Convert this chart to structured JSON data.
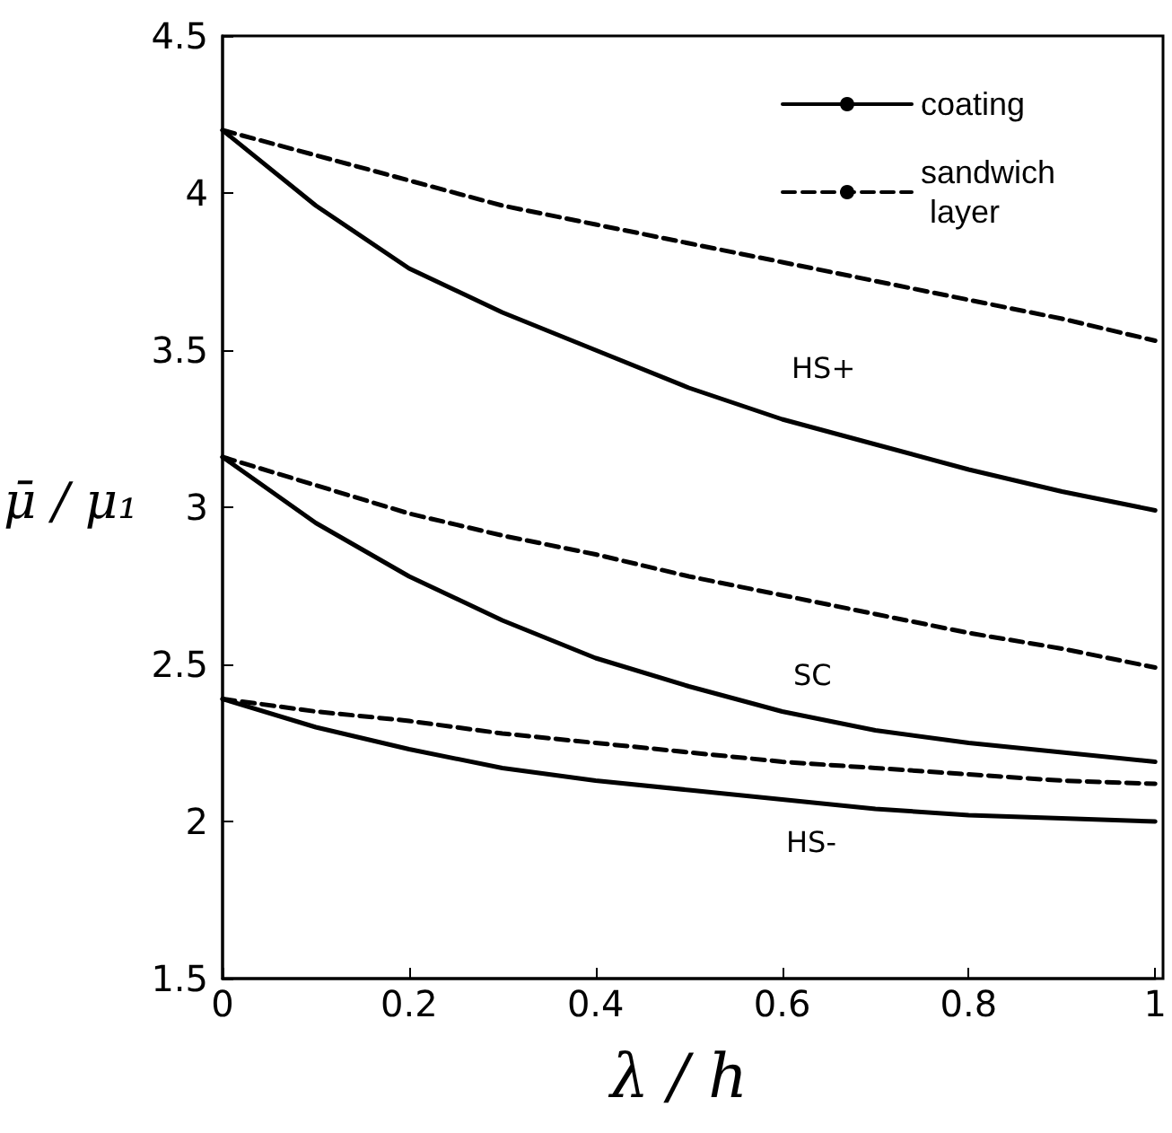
{
  "chart_data": {
    "type": "line",
    "xlabel": "λ / h",
    "ylabel": "μ̄ / μ₁",
    "x": [
      0,
      0.1,
      0.2,
      0.3,
      0.4,
      0.5,
      0.6,
      0.7,
      0.8,
      0.9,
      1
    ],
    "series": [
      {
        "name": "coating",
        "color": "#000000",
        "line_style": "solid",
        "values": [
          4.2,
          3.96,
          3.76,
          3.62,
          3.5,
          3.38,
          3.28,
          3.2,
          3.12,
          3.05,
          2.99
        ]
      },
      {
        "name": "sandwich layer",
        "color": "#000000",
        "line_style": "dashed",
        "values": [
          4.2,
          4.12,
          4.04,
          3.96,
          3.9,
          3.84,
          3.78,
          3.72,
          3.66,
          3.6,
          3.53
        ]
      },
      {
        "color": "#000000",
        "line_style": "solid",
        "values": [
          3.16,
          2.95,
          2.78,
          2.64,
          2.52,
          2.43,
          2.35,
          2.29,
          2.25,
          2.22,
          2.19
        ]
      },
      {
        "color": "#000000",
        "line_style": "dashed",
        "values": [
          3.16,
          3.07,
          2.98,
          2.91,
          2.85,
          2.78,
          2.72,
          2.66,
          2.6,
          2.55,
          2.49
        ]
      },
      {
        "color": "#000000",
        "line_style": "solid",
        "values": [
          2.39,
          2.3,
          2.23,
          2.17,
          2.13,
          2.1,
          2.07,
          2.04,
          2.02,
          2.01,
          2.0
        ]
      },
      {
        "color": "#000000",
        "line_style": "dashed",
        "values": [
          2.39,
          2.35,
          2.32,
          2.28,
          2.25,
          2.22,
          2.19,
          2.17,
          2.15,
          2.13,
          2.12
        ]
      }
    ],
    "xlim": [
      0,
      1
    ],
    "xticks": [
      0,
      0.2,
      0.4,
      0.6,
      0.8,
      1
    ],
    "ylim": [
      1.5,
      4.5
    ],
    "yticks": [
      1.5,
      2,
      2.5,
      3,
      3.5,
      4,
      4.5
    ],
    "grid": false,
    "legend": "top right",
    "marker": "none",
    "annotations": [
      "HS+",
      "SC",
      "HS-"
    ]
  }
}
